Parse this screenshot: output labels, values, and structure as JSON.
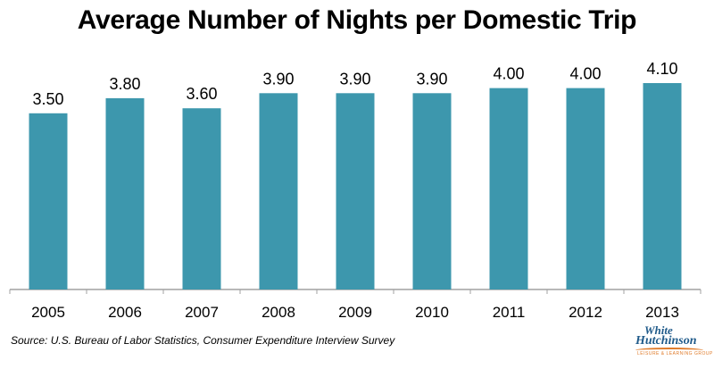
{
  "chart_data": {
    "type": "bar",
    "title": "Average Number of Nights per Domestic Trip",
    "categories": [
      "2005",
      "2006",
      "2007",
      "2008",
      "2009",
      "2010",
      "2011",
      "2012",
      "2013"
    ],
    "values": [
      3.5,
      3.8,
      3.6,
      3.9,
      3.9,
      3.9,
      4.0,
      4.0,
      4.1
    ],
    "value_labels": [
      "3.50",
      "3.80",
      "3.60",
      "3.90",
      "3.90",
      "3.90",
      "4.00",
      "4.00",
      "4.10"
    ],
    "ylim": [
      0,
      4.5
    ],
    "grid": false,
    "bar_color": "#3d97ad"
  },
  "footer": {
    "source": "Source: U.S. Bureau of Labor Statistics, Consumer Expenditure Interview Survey",
    "logo_line1": "White",
    "logo_line2": "Hutchinson",
    "logo_tagline": "LEISURE & LEARNING GROUP"
  }
}
